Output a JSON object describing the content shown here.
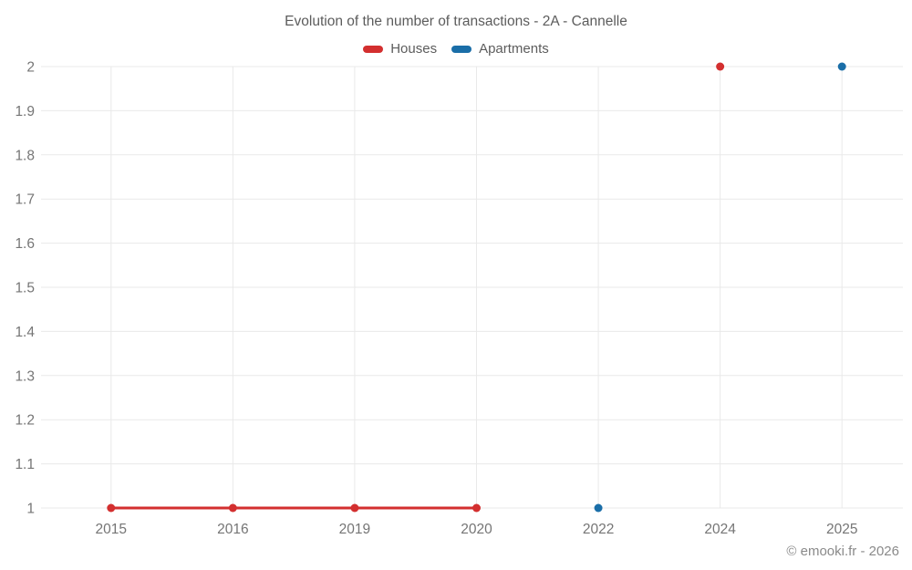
{
  "footer": {
    "copyright": "© emooki.fr - 2026"
  },
  "colors": {
    "houses": "#d32f2f",
    "apartments": "#1a6ea8",
    "gridline": "#e9e9e9",
    "tick_label": "#757575",
    "title_text": "#5c5c5c",
    "background": "#ffffff"
  },
  "chart_data": {
    "type": "line",
    "title": "Evolution of the number of transactions - 2A - Cannelle",
    "xlabel": "",
    "ylabel": "",
    "categories": [
      "2015",
      "2016",
      "2019",
      "2020",
      "2022",
      "2024",
      "2025"
    ],
    "series": [
      {
        "name": "Houses",
        "color": "#d32f2f",
        "values": [
          1,
          1,
          1,
          1,
          null,
          2,
          null
        ]
      },
      {
        "name": "Apartments",
        "color": "#1a6ea8",
        "values": [
          null,
          null,
          null,
          null,
          1,
          null,
          2
        ]
      }
    ],
    "ylim": [
      1,
      2
    ],
    "y_tick_values": [
      1,
      1.1,
      1.2,
      1.3,
      1.4,
      1.5,
      1.6,
      1.7,
      1.8,
      1.9,
      2
    ],
    "y_tick_labels": [
      "1",
      "1.1",
      "1.2",
      "1.3",
      "1.4",
      "1.5",
      "1.6",
      "1.7",
      "1.8",
      "1.9",
      "2"
    ],
    "grid": true,
    "span_gaps": false,
    "legend_position": "top"
  }
}
